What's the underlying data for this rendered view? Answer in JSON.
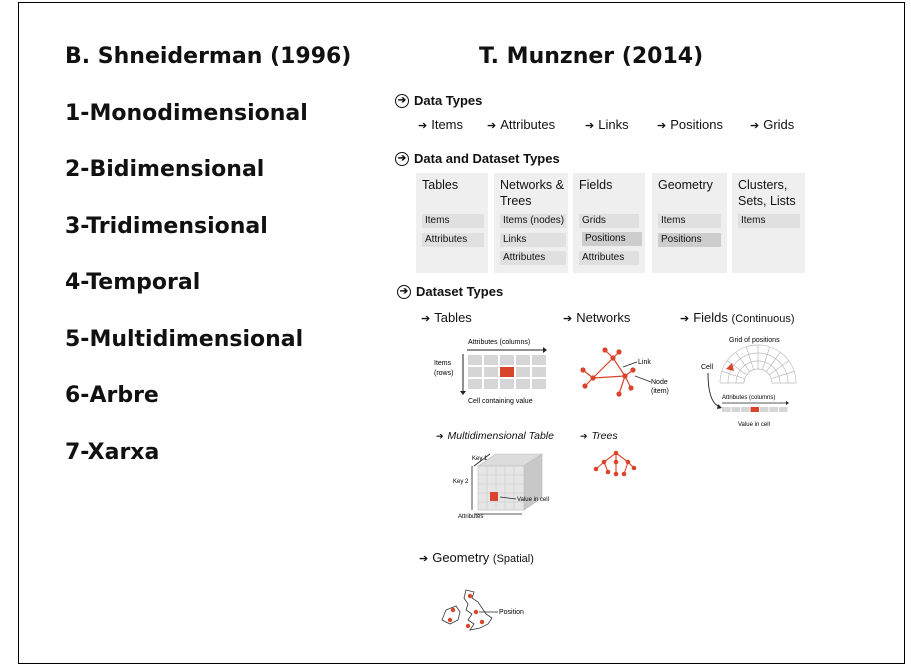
{
  "left": {
    "title": "B. Shneiderman (1996)",
    "items": [
      "1-Monodimensional",
      "2-Bidimensional",
      "3-Tridimensional",
      "4-Temporal",
      "5-Multidimensional",
      "6-Arbre",
      "7-Xarxa"
    ]
  },
  "right": {
    "title": "T. Munzner (2014)",
    "data_types": {
      "heading": "Data Types",
      "items": [
        "Items",
        "Attributes",
        "Links",
        "Positions",
        "Grids"
      ]
    },
    "dataset_types_table": {
      "heading": "Data and Dataset Types",
      "columns": [
        {
          "title": "Tables",
          "chips": [
            "Items",
            "Attributes"
          ]
        },
        {
          "title": "Networks & Trees",
          "chips": [
            "Items (nodes)",
            "Links",
            "Attributes"
          ]
        },
        {
          "title": "Fields",
          "chips": [
            "Grids",
            "Positions",
            "Attributes"
          ]
        },
        {
          "title": "Geometry",
          "chips": [
            "Items",
            "Positions"
          ]
        },
        {
          "title": "Clusters, Sets, Lists",
          "chips": [
            "Items"
          ]
        }
      ]
    },
    "dataset_types": {
      "heading": "Dataset Types",
      "tables": {
        "label": "Tables",
        "attributes_label": "Attributes (columns)",
        "items_label": "Items (rows)",
        "cell_label": "Cell containing value"
      },
      "networks": {
        "label": "Networks",
        "link_label": "Link",
        "node_label": "Node (item)"
      },
      "fields": {
        "label": "Fields",
        "qualifier": "(Continuous)",
        "grid_label": "Grid of positions",
        "cell_label": "Cell",
        "attributes_label": "Attributes (columns)",
        "value_label": "Value in cell"
      },
      "multidim": {
        "label": "Multidimensional Table",
        "key1": "Key 1",
        "key2": "Key 2",
        "attributes_label": "Attributes",
        "value_label": "Value in cell"
      },
      "trees": {
        "label": "Trees"
      },
      "geometry": {
        "label": "Geometry",
        "qualifier": "(Spatial)",
        "position_label": "Position"
      }
    },
    "accent_color": "#d9452b"
  }
}
